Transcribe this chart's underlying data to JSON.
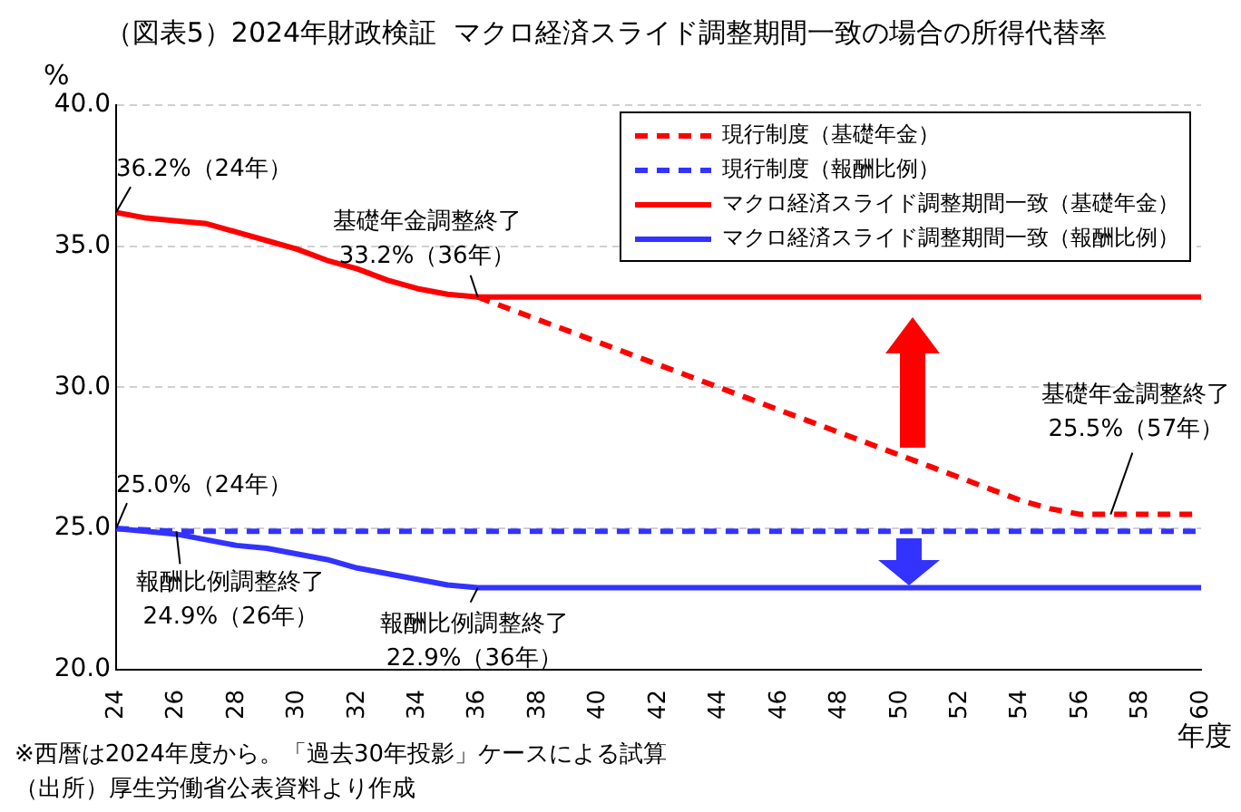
{
  "chart_data": {
    "type": "line",
    "title": "（図表5）2024年財政検証  マクロ経済スライド調整期間一致の場合の所得代替率",
    "ylabel": "%",
    "xlabel": "年度",
    "x": [
      24,
      25,
      26,
      27,
      28,
      29,
      30,
      31,
      32,
      33,
      34,
      35,
      36,
      37,
      38,
      39,
      40,
      41,
      42,
      43,
      44,
      45,
      46,
      47,
      48,
      49,
      50,
      51,
      52,
      53,
      54,
      55,
      56,
      57,
      58,
      59,
      60
    ],
    "series": [
      {
        "name": "現行制度（基礎年金）",
        "color": "#ff0000",
        "line_style": "dashed",
        "values": [
          null,
          null,
          null,
          null,
          null,
          null,
          null,
          null,
          null,
          null,
          null,
          null,
          33.2,
          32.8,
          32.4,
          32.0,
          31.6,
          31.2,
          30.8,
          30.4,
          30.0,
          29.6,
          29.2,
          28.8,
          28.4,
          28.0,
          27.6,
          27.2,
          26.8,
          26.4,
          26.0,
          25.7,
          25.5,
          25.5,
          25.5,
          25.5,
          25.5
        ]
      },
      {
        "name": "現行制度（報酬比例）",
        "color": "#3333ff",
        "line_style": "dashed",
        "values": [
          25.0,
          24.95,
          24.9,
          24.9,
          24.9,
          24.9,
          24.9,
          24.9,
          24.9,
          24.9,
          24.9,
          24.9,
          24.9,
          24.9,
          24.9,
          24.9,
          24.9,
          24.9,
          24.9,
          24.9,
          24.9,
          24.9,
          24.9,
          24.9,
          24.9,
          24.9,
          24.9,
          24.9,
          24.9,
          24.9,
          24.9,
          24.9,
          24.9,
          24.9,
          24.9,
          24.9,
          24.9
        ]
      },
      {
        "name": "マクロ経済スライド調整期間一致（基礎年金）",
        "color": "#ff0000",
        "line_style": "solid",
        "values": [
          36.2,
          36.0,
          35.9,
          35.8,
          35.5,
          35.2,
          34.9,
          34.5,
          34.2,
          33.8,
          33.5,
          33.3,
          33.2,
          33.2,
          33.2,
          33.2,
          33.2,
          33.2,
          33.2,
          33.2,
          33.2,
          33.2,
          33.2,
          33.2,
          33.2,
          33.2,
          33.2,
          33.2,
          33.2,
          33.2,
          33.2,
          33.2,
          33.2,
          33.2,
          33.2,
          33.2,
          33.2
        ]
      },
      {
        "name": "マクロ経済スライド調整期間一致（報酬比例）",
        "color": "#3333ff",
        "line_style": "solid",
        "values": [
          25.0,
          24.9,
          24.8,
          24.6,
          24.4,
          24.3,
          24.1,
          23.9,
          23.6,
          23.4,
          23.2,
          23.0,
          22.9,
          22.9,
          22.9,
          22.9,
          22.9,
          22.9,
          22.9,
          22.9,
          22.9,
          22.9,
          22.9,
          22.9,
          22.9,
          22.9,
          22.9,
          22.9,
          22.9,
          22.9,
          22.9,
          22.9,
          22.9,
          22.9,
          22.9,
          22.9,
          22.9
        ]
      }
    ],
    "xlim": [
      24,
      60
    ],
    "xticks": [
      24,
      26,
      28,
      30,
      32,
      34,
      36,
      38,
      40,
      42,
      44,
      46,
      48,
      50,
      52,
      54,
      56,
      58,
      60
    ],
    "ylim": [
      20,
      40
    ],
    "yticks": [
      {
        "value": 20,
        "label": "20.0"
      },
      {
        "value": 25,
        "label": "25.0"
      },
      {
        "value": 30,
        "label": "30.0"
      },
      {
        "value": 35,
        "label": "35.0"
      },
      {
        "value": 40,
        "label": "40.0"
      }
    ],
    "grid": "y",
    "legend": "top right",
    "marker": "none",
    "annotations": [
      {
        "text": "36.2%（24年）",
        "x": 24,
        "y": 36.2
      },
      {
        "text": "基礎年金調整終了\n33.2%（36年）",
        "x": 36,
        "y": 33.2
      },
      {
        "text": "基礎年金調整終了\n25.5%（57年）",
        "x": 57,
        "y": 25.5
      },
      {
        "text": "25.0%（24年）",
        "x": 24,
        "y": 25.0
      },
      {
        "text": "報酬比例調整終了\n24.9%（26年）",
        "x": 26,
        "y": 24.9
      },
      {
        "text": "報酬比例調整終了\n22.9%（36年）",
        "x": 36,
        "y": 22.9
      },
      "※西暦は2024年度から。「過去30年投影」ケースによる試算",
      "（出所）厚生労働省公表資料より作成"
    ]
  }
}
